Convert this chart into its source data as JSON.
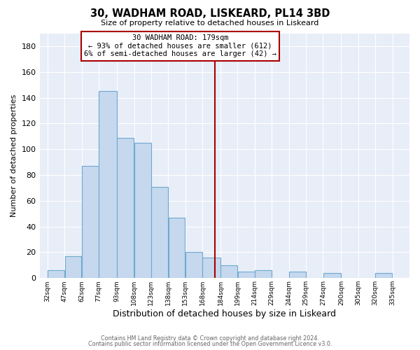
{
  "title": "30, WADHAM ROAD, LISKEARD, PL14 3BD",
  "subtitle": "Size of property relative to detached houses in Liskeard",
  "xlabel": "Distribution of detached houses by size in Liskeard",
  "ylabel": "Number of detached properties",
  "bar_left_edges": [
    32,
    47,
    62,
    77,
    93,
    108,
    123,
    138,
    153,
    168,
    184,
    199,
    214,
    229,
    244,
    259,
    274,
    290,
    305,
    320
  ],
  "bar_widths": [
    15,
    15,
    15,
    16,
    15,
    15,
    15,
    15,
    15,
    16,
    15,
    15,
    15,
    15,
    15,
    15,
    16,
    15,
    15,
    15
  ],
  "bar_heights": [
    6,
    17,
    87,
    145,
    109,
    105,
    71,
    47,
    20,
    16,
    10,
    5,
    6,
    0,
    5,
    0,
    4,
    0,
    0,
    4
  ],
  "tick_labels": [
    "32sqm",
    "47sqm",
    "62sqm",
    "77sqm",
    "93sqm",
    "108sqm",
    "123sqm",
    "138sqm",
    "153sqm",
    "168sqm",
    "184sqm",
    "199sqm",
    "214sqm",
    "229sqm",
    "244sqm",
    "259sqm",
    "274sqm",
    "290sqm",
    "305sqm",
    "320sqm",
    "335sqm"
  ],
  "tick_positions": [
    32,
    47,
    62,
    77,
    93,
    108,
    123,
    138,
    153,
    168,
    184,
    199,
    214,
    229,
    244,
    259,
    274,
    290,
    305,
    320,
    335
  ],
  "bar_color": "#c5d8ee",
  "bar_edge_color": "#6fa8d0",
  "vline_x": 179,
  "vline_color": "#aa0000",
  "ylim": [
    0,
    190
  ],
  "yticks": [
    0,
    20,
    40,
    60,
    80,
    100,
    120,
    140,
    160,
    180
  ],
  "annotation_title": "30 WADHAM ROAD: 179sqm",
  "annotation_line1": "← 93% of detached houses are smaller (612)",
  "annotation_line2": "6% of semi-detached houses are larger (42) →",
  "annotation_box_color": "#ffffff",
  "annotation_box_edge": "#aa0000",
  "footer_line1": "Contains HM Land Registry data © Crown copyright and database right 2024.",
  "footer_line2": "Contains public sector information licensed under the Open Government Licence v3.0.",
  "fig_bg_color": "#ffffff",
  "plot_bg_color": "#e8eef8",
  "grid_color": "#ffffff",
  "xlim": [
    25,
    350
  ]
}
